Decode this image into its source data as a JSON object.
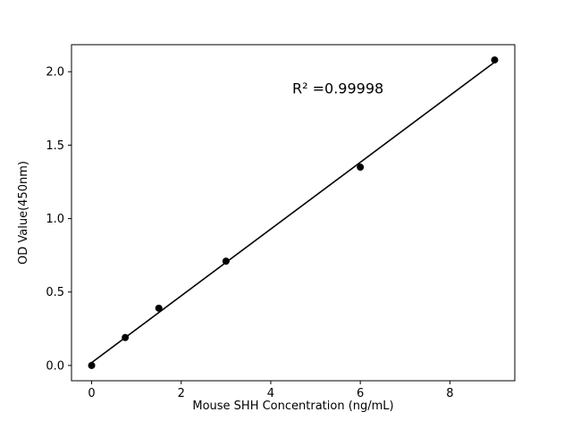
{
  "figure": {
    "background": "#ffffff",
    "frame_color": "#000000"
  },
  "chart_data": {
    "type": "scatter",
    "x": [
      0,
      0.75,
      1.5,
      3,
      6,
      9
    ],
    "y": [
      0.0,
      0.19,
      0.39,
      0.71,
      1.35,
      2.08
    ],
    "title": "",
    "xlabel": "Mouse SHH Concentration (ng/mL)",
    "ylabel": "OD Value(450nm)",
    "xlim": [
      -0.45,
      9.45
    ],
    "ylim": [
      -0.104,
      2.184
    ],
    "xticks": [
      0,
      2,
      4,
      6,
      8
    ],
    "xtick_labels": [
      "0",
      "2",
      "4",
      "6",
      "8"
    ],
    "yticks": [
      0.0,
      0.5,
      1.0,
      1.5,
      2.0
    ],
    "ytick_labels": [
      "0.0",
      "0.5",
      "1.0",
      "1.5",
      "2.0"
    ],
    "grid": false,
    "legend_position": "none",
    "marker_color": "#000000",
    "line_color": "#000000",
    "fit_line": true,
    "annotation": {
      "text": "R² =0.99998",
      "x": 5.5,
      "y": 1.88
    }
  }
}
